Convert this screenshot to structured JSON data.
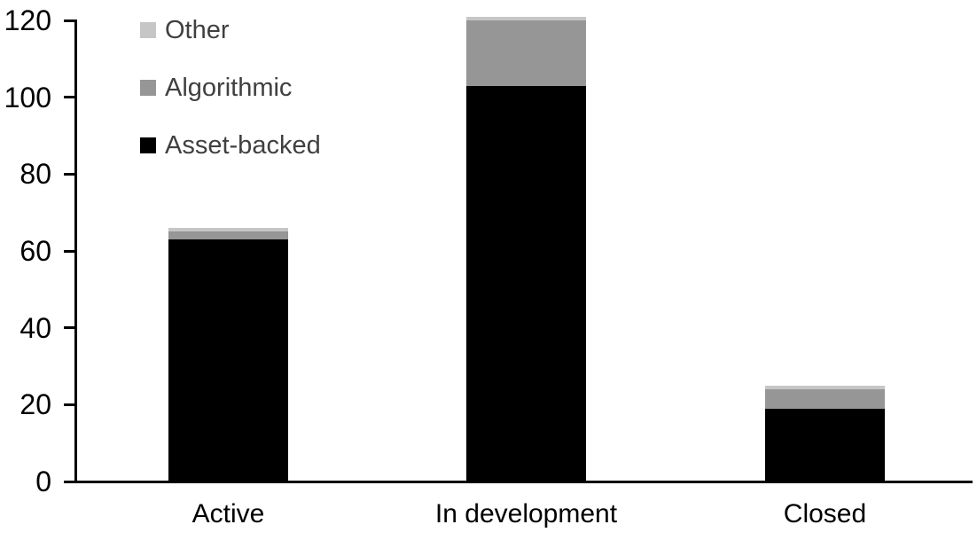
{
  "chart_data": {
    "type": "bar",
    "stacked": true,
    "categories": [
      "Active",
      "In development",
      "Closed"
    ],
    "series": [
      {
        "name": "Asset-backed",
        "color": "#000000",
        "values": [
          63,
          103,
          19
        ]
      },
      {
        "name": "Algorithmic",
        "color": "#969696",
        "values": [
          2,
          17,
          5
        ]
      },
      {
        "name": "Other",
        "color": "#c6c6c6",
        "values": [
          1,
          1,
          1
        ]
      }
    ],
    "totals": [
      66,
      121,
      25
    ],
    "yticks": [
      0,
      20,
      40,
      60,
      80,
      100,
      120
    ],
    "ylim": [
      0,
      120
    ],
    "title": "",
    "xlabel": "",
    "ylabel": "",
    "grid": false,
    "legend": {
      "position": "top-left",
      "order": [
        "Other",
        "Algorithmic",
        "Asset-backed"
      ],
      "text_color": "#404040"
    },
    "axis_color": "#000000",
    "background_color": "#ffffff"
  }
}
